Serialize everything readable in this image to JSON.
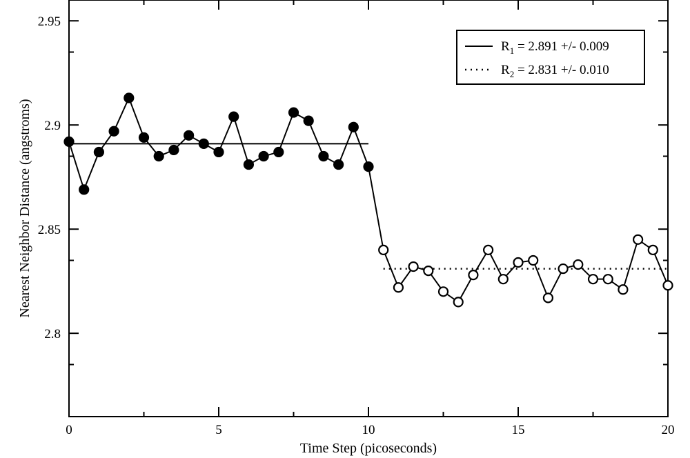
{
  "chart_data": {
    "type": "line",
    "xlabel": "Time Step (picoseconds)",
    "ylabel": "Nearest Neighbor Distance (angstroms)",
    "xlim": [
      0,
      20
    ],
    "ylim": [
      2.76,
      2.96
    ],
    "x_ticks": [
      "0",
      "5",
      "10",
      "15",
      "20"
    ],
    "y_ticks": [
      "2.8",
      "2.85",
      "2.9",
      "2.95"
    ],
    "grid": false,
    "legend_position": "top-right",
    "series": [
      {
        "marker": "filled-circle",
        "x": [
          0,
          0.5,
          1,
          1.5,
          2,
          2.5,
          3,
          3.5,
          4,
          4.5,
          5,
          5.5,
          6,
          6.5,
          7,
          7.5,
          8,
          8.5,
          9,
          9.5,
          10
        ],
        "y": [
          2.892,
          2.869,
          2.887,
          2.897,
          2.913,
          2.894,
          2.885,
          2.888,
          2.895,
          2.891,
          2.887,
          2.904,
          2.881,
          2.885,
          2.887,
          2.906,
          2.902,
          2.885,
          2.881,
          2.899,
          2.88
        ]
      },
      {
        "marker": "open-circle",
        "x": [
          10.5,
          11,
          11.5,
          12,
          12.5,
          13,
          13.5,
          14,
          14.5,
          15,
          15.5,
          16,
          16.5,
          17,
          17.5,
          18,
          18.5,
          19,
          19.5,
          20
        ],
        "y": [
          2.84,
          2.822,
          2.832,
          2.83,
          2.82,
          2.815,
          2.828,
          2.84,
          2.826,
          2.834,
          2.835,
          2.817,
          2.831,
          2.833,
          2.826,
          2.826,
          2.821,
          2.845,
          2.84,
          2.823
        ]
      }
    ],
    "fit_lines": [
      {
        "style": "solid",
        "x_range": [
          0,
          10
        ],
        "y": 2.891,
        "legend_label": "R",
        "legend_sub": "1",
        "legend_value": " = 2.891 +/- 0.009"
      },
      {
        "style": "dotted",
        "x_range": [
          10.5,
          20
        ],
        "y": 2.831,
        "legend_label": "R",
        "legend_sub": "2",
        "legend_value": " = 2.831 +/- 0.010"
      }
    ]
  }
}
